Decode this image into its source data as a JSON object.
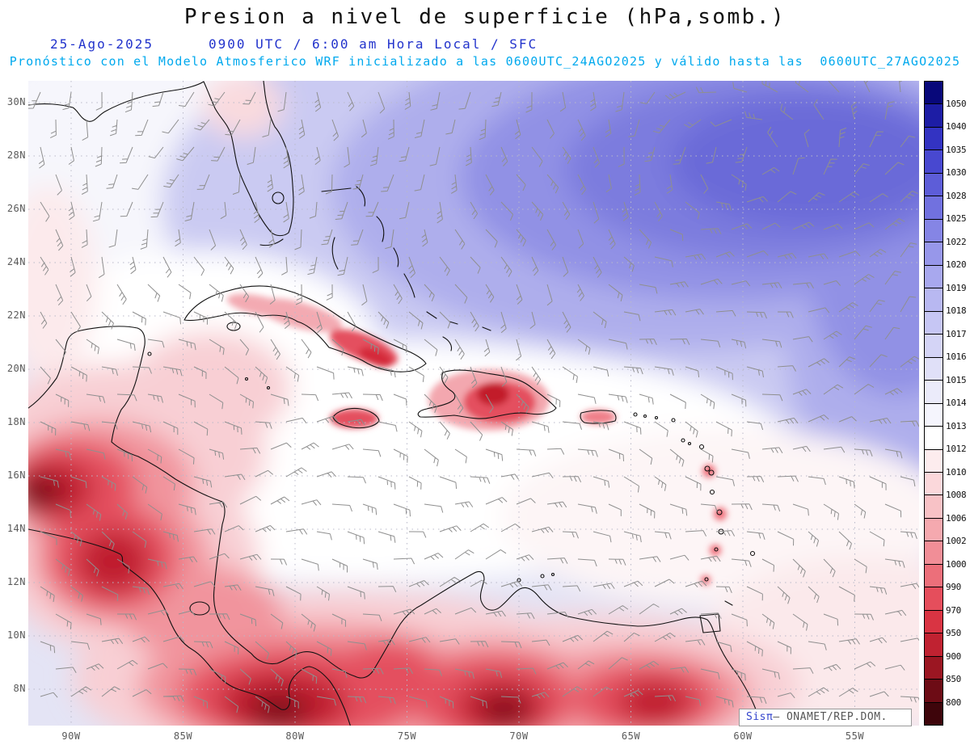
{
  "title": "Presion a nivel de superficie (hPa,somb.)",
  "header": {
    "date": "25-Ago-2025",
    "time": "0900 UTC / 6:00 am Hora Local / SFC",
    "model": "Pronóstico con el Modelo Atmosferico WRF inicializado a las 0600UTC_24AGO2025 y válido hasta las  0600UTC_27AGO2025"
  },
  "attribution": {
    "brand": "Sisπ",
    "org": "— ONAMET/REP.DOM."
  },
  "colors": {
    "subtitle_date": "#2233cc",
    "subtitle_model": "#00a9ee",
    "axis_labels": "#5a5a5a",
    "wind_barbs": "#8f8f8f",
    "coastlines": "#111111"
  },
  "chart_data": {
    "type": "heatmap",
    "title": "Presion a nivel de superficie (hPa,somb.)",
    "variable": "Surface pressure (shaded) with surface wind barbs",
    "units": "hPa",
    "model_run": {
      "model": "WRF",
      "initialized": "0600UTC_24AGO2025",
      "valid_until": "0600UTC_27AGO2025",
      "valid_at": "25-Ago-2025 0900 UTC / 6:00 am Hora Local / SFC"
    },
    "lat_ticks": [
      "30N",
      "28N",
      "26N",
      "24N",
      "22N",
      "20N",
      "18N",
      "16N",
      "14N",
      "12N",
      "10N",
      "8N"
    ],
    "lon_ticks": [
      "90W",
      "85W",
      "80W",
      "75W",
      "70W",
      "65W",
      "60W",
      "55W"
    ],
    "colorbar": {
      "levels": [
        1050,
        1040,
        1035,
        1030,
        1028,
        1025,
        1022,
        1020,
        1019,
        1018,
        1017,
        1016,
        1015,
        1014,
        1013,
        1012,
        1010,
        1008,
        1006,
        1002,
        1000,
        990,
        970,
        950,
        900,
        850,
        800
      ],
      "colors": [
        "#08087a",
        "#1d1da5",
        "#3333c2",
        "#4848d0",
        "#5d5dd8",
        "#7171df",
        "#8585e5",
        "#9797ea",
        "#a8a8ee",
        "#b8b8f1",
        "#c6c6f4",
        "#d4d4f6",
        "#e0e0f8",
        "#ebebfa",
        "#f5f5fd",
        "#ffffff",
        "#fdecee",
        "#fbd8db",
        "#f8c2c6",
        "#f5a9af",
        "#f18e97",
        "#ec6f7a",
        "#e54e5c",
        "#d93443",
        "#c02231",
        "#9b1622",
        "#6d0c15",
        "#3e050b"
      ]
    },
    "features": [
      {
        "name": "Subtropical high (blue shading)",
        "location": "northeast Atlantic sector of map",
        "approx_pressure_hPa": "1019-1025"
      },
      {
        "name": "Low pressure / heat lows (red shading)",
        "location": "Central America and northern South America",
        "approx_pressure_hPa": "1010 and below"
      }
    ]
  }
}
